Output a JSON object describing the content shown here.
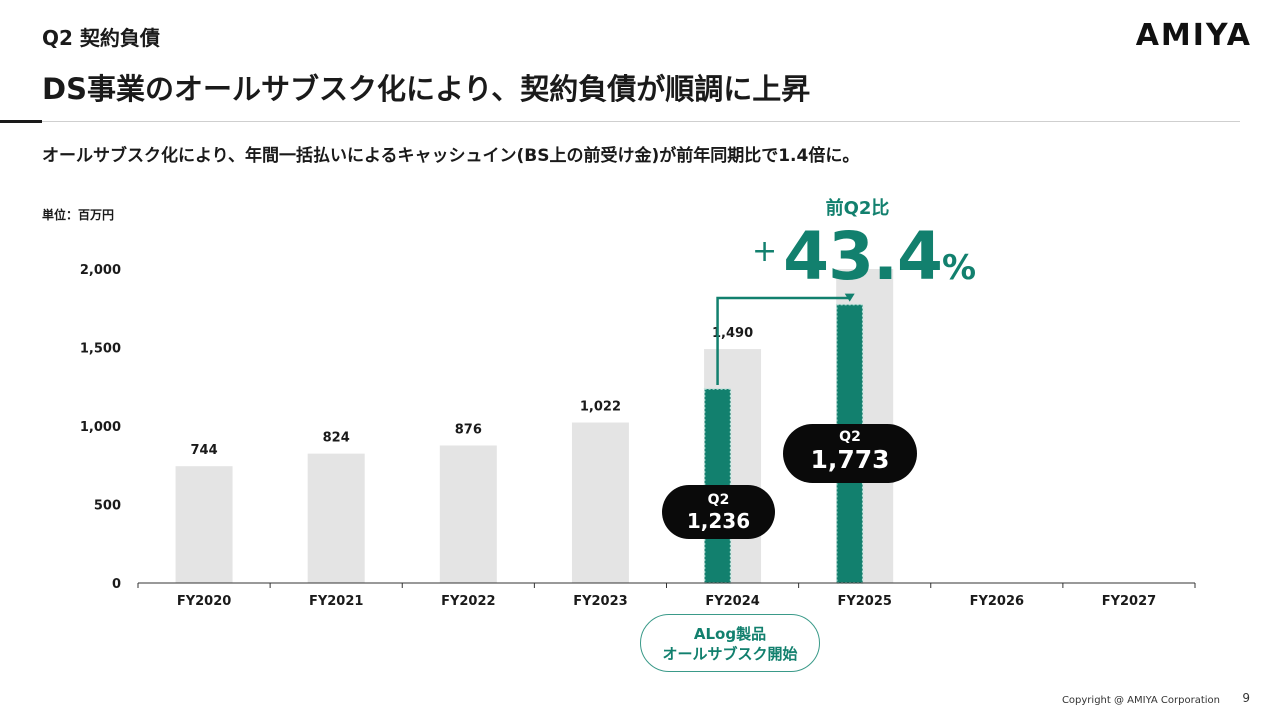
{
  "header": {
    "section_label": "Q2 契約負債",
    "logo": "AMIYA",
    "headline": "DS事業のオールサブスク化により、契約負債が順調に上昇",
    "subhead": "オールサブスク化により、年間一括払いによるキャッシュイン(BS上の前受け金)が前年同期比で1.4倍に。"
  },
  "unit_label": "単位：百万円",
  "callout": {
    "caption": "前Q2比",
    "sign": "+",
    "value": "43.4",
    "unit": "%",
    "color": "#12806e"
  },
  "annotation": {
    "line1": "ALog製品",
    "line2": "オールサブスク開始"
  },
  "chart_data": {
    "type": "bar",
    "categories": [
      "FY2020",
      "FY2021",
      "FY2022",
      "FY2023",
      "FY2024",
      "FY2025",
      "FY2026",
      "FY2027"
    ],
    "ylim": [
      0,
      2000
    ],
    "yticks": [
      0,
      500,
      1000,
      1500,
      2000
    ],
    "ytick_labels": [
      "0",
      "500",
      "1,000",
      "1,500",
      "2,000"
    ],
    "grid": false,
    "series": [
      {
        "role": "full_year",
        "color": "#e4e4e4",
        "values": [
          744,
          824,
          876,
          1022,
          1490,
          2000,
          null,
          null
        ],
        "labels": [
          "744",
          "824",
          "876",
          "1,022",
          "1,490",
          "",
          "",
          ""
        ]
      },
      {
        "role": "q2",
        "color": "#12806e",
        "values": [
          null,
          null,
          null,
          null,
          1236,
          1773,
          null,
          null
        ],
        "label_prefix": "Q2",
        "labels": [
          "",
          "",
          "",
          "",
          "1,236",
          "1,773",
          "",
          ""
        ]
      }
    ]
  },
  "footer": {
    "copyright": "Copyright @ AMIYA Corporation",
    "page_number": "9"
  }
}
